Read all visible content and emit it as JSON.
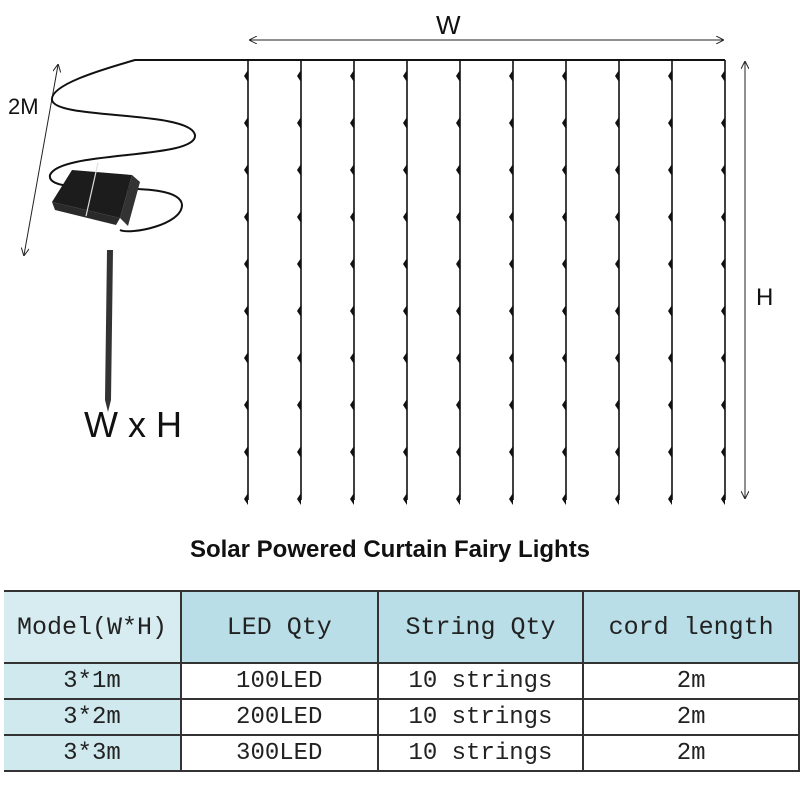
{
  "diagram": {
    "width_label": "W",
    "height_label": "H",
    "cord_label": "2M",
    "size_label": "W x H",
    "string_count": 10
  },
  "title": "Solar Powered Curtain Fairy Lights",
  "table": {
    "headers": [
      "Model(W*H)",
      "LED Qty",
      "String Qty",
      "cord length"
    ],
    "rows": [
      [
        "3*1m",
        "100LED",
        "10 strings",
        "2m"
      ],
      [
        "3*2m",
        "200LED",
        "10 strings",
        "2m"
      ],
      [
        "3*3m",
        "300LED",
        "10 strings",
        "2m"
      ]
    ]
  }
}
